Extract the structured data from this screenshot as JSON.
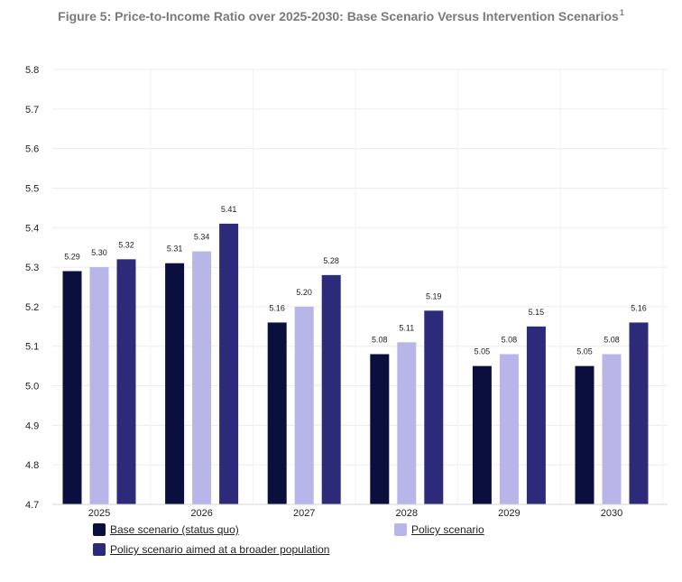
{
  "chart_data": {
    "type": "bar",
    "title": "Figure 5: Price-to-Income Ratio over 2025-2030: Base Scenario Versus Intervention Scenarios",
    "title_superscript": "1",
    "categories": [
      "2025",
      "2026",
      "2027",
      "2028",
      "2029",
      "2030"
    ],
    "series": [
      {
        "name": "Base scenario (status quo)",
        "color": "#0b0f3d",
        "values": [
          5.29,
          5.31,
          5.16,
          5.08,
          5.05,
          5.05
        ],
        "labels": [
          "5.29",
          "5.31",
          "5.16",
          "5.08",
          "5.05",
          "5.05"
        ]
      },
      {
        "name": "Policy scenario",
        "color": "#b8b6e8",
        "values": [
          5.3,
          5.34,
          5.2,
          5.11,
          5.08,
          5.08
        ],
        "labels": [
          "5.30",
          "5.34",
          "5.20",
          "5.11",
          "5.08",
          "5.08"
        ]
      },
      {
        "name": "Policy scenario aimed at a broader population",
        "color": "#2e2a7a",
        "values": [
          5.32,
          5.41,
          5.28,
          5.19,
          5.15,
          5.16
        ],
        "labels": [
          "5.32",
          "5.41",
          "5.28",
          "5.19",
          "5.15",
          "5.16"
        ]
      }
    ],
    "ylim": [
      4.7,
      5.8
    ],
    "yticks": [
      "4.7",
      "4.8",
      "4.9",
      "5.0",
      "5.1",
      "5.2",
      "5.3",
      "5.4",
      "5.5",
      "5.6",
      "5.7",
      "5.8"
    ],
    "xlabel": "",
    "ylabel": "",
    "grid": true,
    "legend_position": "bottom"
  }
}
